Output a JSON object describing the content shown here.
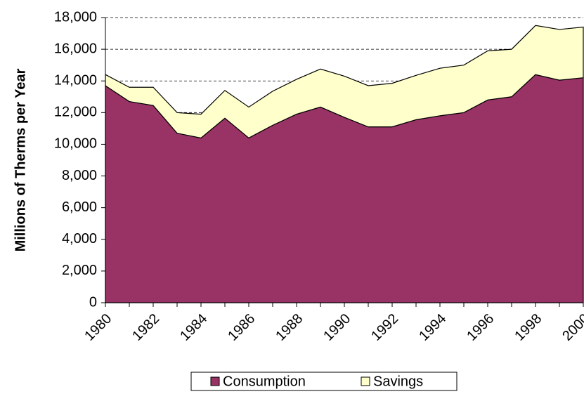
{
  "chart_data": {
    "type": "stacked-area",
    "y_label": "Millions of Therms per Year",
    "categories": [
      "1980",
      null,
      "1982",
      null,
      "1984",
      null,
      "1986",
      null,
      "1988",
      null,
      "1990",
      null,
      "1992",
      null,
      "1994",
      null,
      "1996",
      null,
      "1998",
      null,
      "2000"
    ],
    "series": [
      {
        "name": "Consumption",
        "color": "#993366",
        "values": [
          13700,
          12700,
          12450,
          10700,
          10400,
          11650,
          10400,
          11200,
          11900,
          12350,
          11700,
          11100,
          11100,
          11550,
          11800,
          12000,
          12800,
          13000,
          14400,
          14050,
          14200
        ]
      },
      {
        "name": "Savings",
        "color": "#ffffcc",
        "values": [
          700,
          900,
          1150,
          1300,
          1500,
          1750,
          1950,
          2150,
          2200,
          2400,
          2600,
          2600,
          2750,
          2800,
          3000,
          3000,
          3100,
          3000,
          3100,
          3200,
          3200
        ]
      }
    ],
    "ylim": [
      0,
      18000
    ],
    "yticks": [
      0,
      {
        "value": 2000,
        "label": "2,000"
      },
      {
        "value": 4000,
        "label": "4,000"
      },
      {
        "value": 6000,
        "label": "6,000"
      },
      {
        "value": 8000,
        "label": "8,000"
      },
      {
        "value": 10000,
        "label": "10,000"
      },
      {
        "value": 12000,
        "label": "12,000"
      },
      {
        "value": 14000,
        "label": "14,000"
      },
      {
        "value": 16000,
        "label": "16,000"
      },
      {
        "value": 18000,
        "label": "18,000"
      }
    ],
    "grid": true,
    "legend": "bottom"
  }
}
